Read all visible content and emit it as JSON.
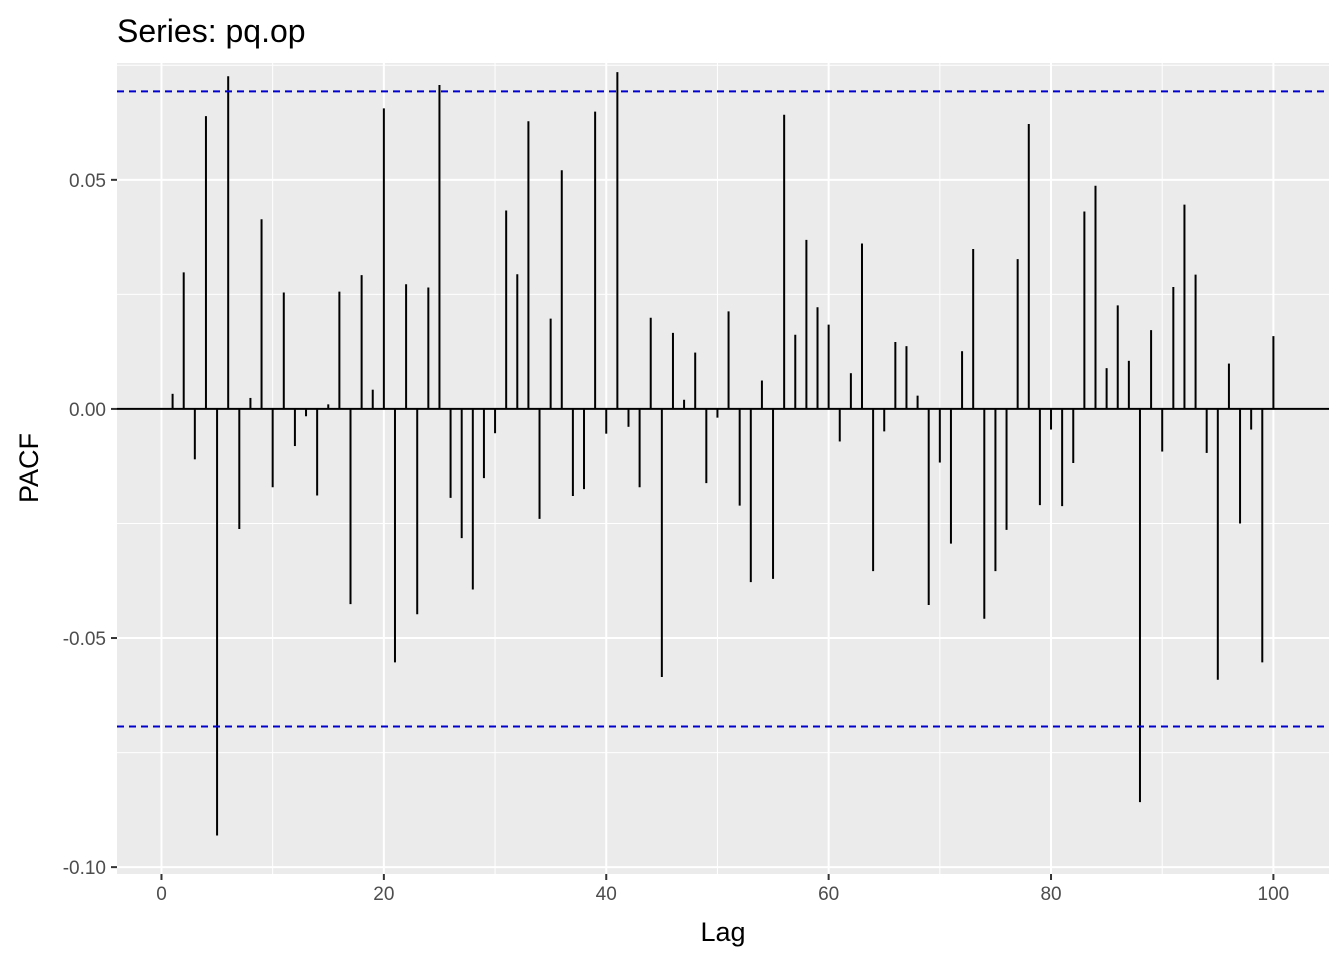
{
  "chart_data": {
    "type": "bar",
    "title": "Series: pq.op",
    "xlabel": "Lag",
    "ylabel": "PACF",
    "xlim": [
      -4,
      105
    ],
    "ylim": [
      -0.1015,
      0.0755
    ],
    "x_ticks": [
      {
        "value": 0,
        "label": "0"
      },
      {
        "value": 20,
        "label": "20"
      },
      {
        "value": 40,
        "label": "40"
      },
      {
        "value": 60,
        "label": "60"
      },
      {
        "value": 80,
        "label": "80"
      },
      {
        "value": 100,
        "label": "100"
      }
    ],
    "y_ticks": [
      {
        "value": -0.1,
        "label": "-0.10"
      },
      {
        "value": -0.05,
        "label": "-0.05"
      },
      {
        "value": 0.0,
        "label": "0.00"
      },
      {
        "value": 0.05,
        "label": "0.05"
      }
    ],
    "confidence_bound": 0.0693,
    "grid": true,
    "colors": {
      "panel": "#ebebeb",
      "grid": "#ffffff",
      "bars": "#000000",
      "bound": "#0000cd",
      "tick": "#333333"
    },
    "x": [
      1,
      2,
      3,
      4,
      5,
      6,
      7,
      8,
      9,
      10,
      11,
      12,
      13,
      14,
      15,
      16,
      17,
      18,
      19,
      20,
      21,
      22,
      23,
      24,
      25,
      26,
      27,
      28,
      29,
      30,
      31,
      32,
      33,
      34,
      35,
      36,
      37,
      38,
      39,
      40,
      41,
      42,
      43,
      44,
      45,
      46,
      47,
      48,
      49,
      50,
      51,
      52,
      53,
      54,
      55,
      56,
      57,
      58,
      59,
      60,
      61,
      62,
      63,
      64,
      65,
      66,
      67,
      68,
      69,
      70,
      71,
      72,
      73,
      74,
      75,
      76,
      77,
      78,
      79,
      80,
      81,
      82,
      83,
      84,
      85,
      86,
      87,
      88,
      89,
      90,
      91,
      92,
      93,
      94,
      95,
      96,
      97,
      98,
      99,
      100
    ],
    "values": [
      0.0033,
      0.0298,
      -0.011,
      0.0639,
      -0.0931,
      0.0726,
      -0.0262,
      0.0024,
      0.0414,
      -0.0171,
      0.0254,
      -0.0081,
      -0.0016,
      -0.0189,
      0.001,
      0.0256,
      -0.0426,
      0.0292,
      0.0042,
      0.0656,
      -0.0553,
      0.0272,
      -0.0448,
      0.0265,
      0.0707,
      -0.0194,
      -0.0282,
      -0.0394,
      -0.0151,
      -0.0053,
      0.0433,
      0.0294,
      0.0628,
      -0.024,
      0.0197,
      0.0521,
      -0.019,
      -0.0175,
      0.0649,
      -0.0054,
      0.0735,
      -0.0039,
      -0.0171,
      0.0199,
      -0.0585,
      0.0166,
      0.002,
      0.0123,
      -0.0162,
      -0.0019,
      0.0213,
      -0.0211,
      -0.0378,
      0.0062,
      -0.0371,
      0.0642,
      0.0162,
      0.0369,
      0.0222,
      0.0184,
      -0.0071,
      0.0078,
      0.0361,
      -0.0354,
      -0.0049,
      0.0146,
      0.0137,
      0.0029,
      -0.0428,
      -0.0117,
      -0.0294,
      0.0126,
      0.0349,
      -0.0458,
      -0.0354,
      -0.0264,
      0.0327,
      0.0622,
      -0.021,
      -0.0045,
      -0.0212,
      -0.0118,
      0.0431,
      0.0487,
      0.0089,
      0.0226,
      0.0105,
      -0.0858,
      0.0172,
      -0.0093,
      0.0266,
      0.0446,
      0.0293,
      -0.0096,
      -0.0591,
      0.0099,
      -0.025,
      -0.0045,
      -0.0553,
      0.0159
    ]
  }
}
